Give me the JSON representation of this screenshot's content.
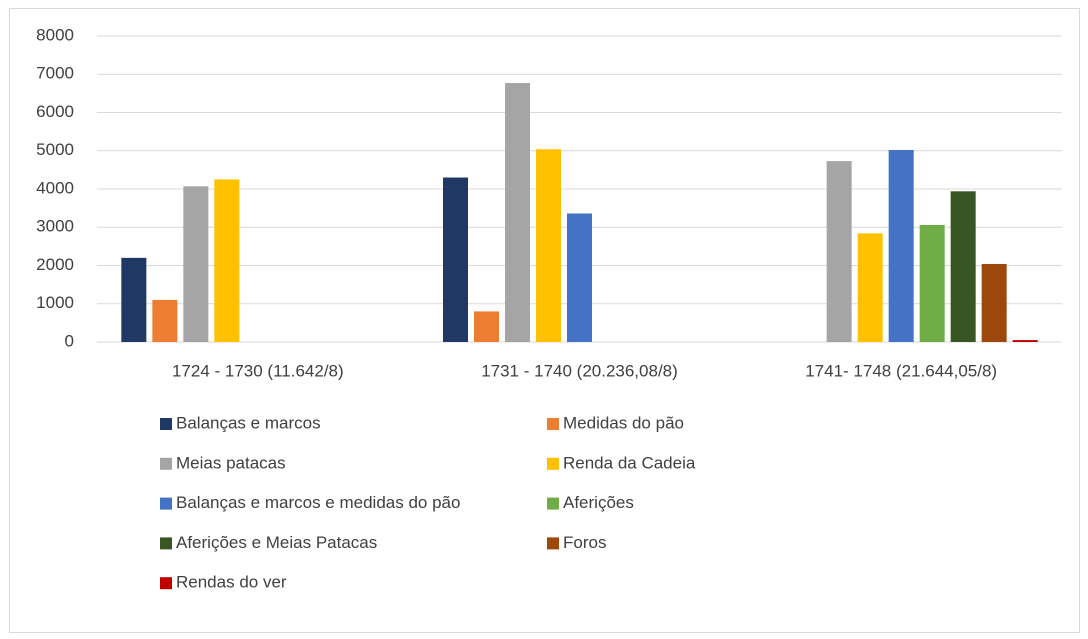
{
  "chart_data": {
    "type": "bar",
    "categories": [
      "1724 - 1730 (11.642/8)",
      "1731 - 1740 (20.236,08/8)",
      "1741- 1748 (21.644,05/8)"
    ],
    "series": [
      {
        "name": "Balanças e marcos",
        "color": "#203864",
        "values": [
          2200,
          4300,
          null
        ]
      },
      {
        "name": "Medidas do pão",
        "color": "#ed7d31",
        "values": [
          1100,
          800,
          null
        ]
      },
      {
        "name": "Meias patacas",
        "color": "#a5a5a5",
        "values": [
          4070,
          6770,
          4730
        ]
      },
      {
        "name": "Renda da Cadeia",
        "color": "#ffc000",
        "values": [
          4250,
          5040,
          2840
        ]
      },
      {
        "name": "Balanças e marcos e medidas do pão",
        "color": "#4472c4",
        "values": [
          null,
          3360,
          5020
        ]
      },
      {
        "name": "Aferições",
        "color": "#70ad47",
        "values": [
          null,
          null,
          3060
        ]
      },
      {
        "name": "Aferições e Meias Patacas",
        "color": "#375623",
        "values": [
          null,
          null,
          3940
        ]
      },
      {
        "name": "Foros",
        "color": "#9e480e",
        "values": [
          null,
          null,
          2040
        ]
      },
      {
        "name": "Rendas do ver",
        "color": "#c00000",
        "values": [
          null,
          null,
          50
        ]
      }
    ],
    "ylim": [
      0,
      8000
    ],
    "yticks": [
      0,
      1000,
      2000,
      3000,
      4000,
      5000,
      6000,
      7000,
      8000
    ],
    "grid": true
  }
}
